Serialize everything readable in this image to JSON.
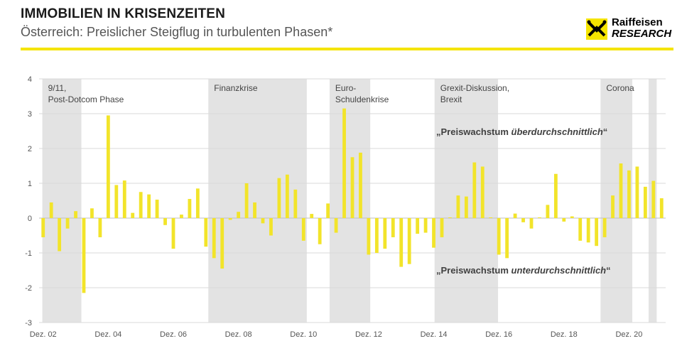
{
  "header": {
    "title": "IMMOBILIEN IN KRISENZEITEN",
    "subtitle": "Österreich: Preislicher Steigflug in turbulenten Phasen*"
  },
  "logo": {
    "line1": "Raiffeisen",
    "line2": "RESEARCH"
  },
  "colors": {
    "accent": "#f5e400",
    "bar": "#f2e42a",
    "shade": "#e3e3e3",
    "grid": "#d9d9d9"
  },
  "chart_data": {
    "type": "bar",
    "ylim": [
      -3,
      4
    ],
    "yticks": [
      "4",
      "3",
      "2",
      "1",
      "0",
      "-1",
      "-2",
      "-3"
    ],
    "xticks": [
      "Dez. 02",
      "Dez. 04",
      "Dez. 06",
      "Dez. 08",
      "Dez. 10",
      "Dez. 12",
      "Dez. 14",
      "Dez. 16",
      "Dez. 18",
      "Dez. 20"
    ],
    "values": [
      -0.55,
      0.45,
      -0.95,
      -0.3,
      0.2,
      -2.15,
      0.28,
      -0.55,
      2.95,
      0.95,
      1.08,
      0.15,
      0.75,
      0.68,
      0.53,
      -0.2,
      -0.88,
      0.1,
      0.55,
      0.85,
      -0.82,
      -1.15,
      -1.45,
      -0.05,
      0.18,
      1.0,
      0.45,
      -0.15,
      -0.5,
      1.15,
      1.25,
      0.82,
      -0.65,
      0.12,
      -0.75,
      0.42,
      -0.42,
      3.15,
      1.75,
      1.88,
      -1.05,
      -1.0,
      -0.88,
      -0.55,
      -1.4,
      -1.32,
      -0.45,
      -0.42,
      -0.85,
      -0.55,
      0.02,
      0.65,
      0.62,
      1.6,
      1.48,
      0.02,
      -1.05,
      -1.15,
      0.13,
      -0.12,
      -0.3,
      0.02,
      0.38,
      1.27,
      -0.1,
      0.05,
      -0.65,
      -0.7,
      -0.8,
      -0.55,
      0.65,
      1.57,
      1.37,
      1.48,
      0.9,
      1.07,
      0.57
    ],
    "crises": [
      {
        "lines": [
          "9/11,",
          "Post-Dotcom Phase"
        ],
        "start": 0.4,
        "end": 5.2
      },
      {
        "lines": [
          "Finanzkrise"
        ],
        "start": 20.8,
        "end": 32.9
      },
      {
        "lines": [
          "Euro-",
          "Schuldenkrise"
        ],
        "start": 35.7,
        "end": 40.7
      },
      {
        "lines": [
          "Grexit-Diskussion,",
          "Brexit"
        ],
        "start": 48.6,
        "end": 56.4
      },
      {
        "lines": [
          "Corona"
        ],
        "start": 69.0,
        "end": 72.9
      },
      {
        "lines": [],
        "start": 74.9,
        "end": 75.9
      }
    ],
    "annotations": {
      "above_prefix": "„Preiswachstum ",
      "above_emph": "überdurchschnittlich",
      "above_suffix": "“",
      "below_prefix": "„Preiswachstum ",
      "below_emph": "unterdurchschnittlich",
      "below_suffix": "“"
    }
  }
}
